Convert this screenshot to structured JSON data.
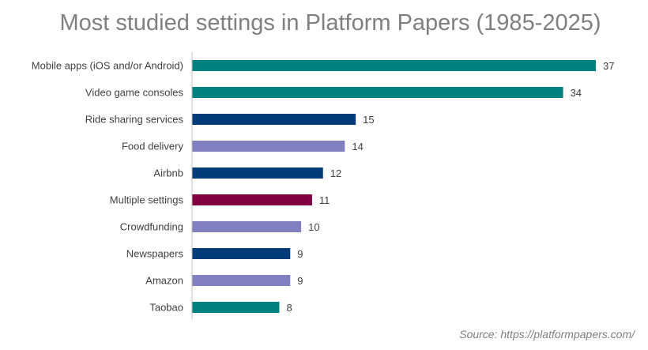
{
  "chart_data": {
    "type": "bar",
    "orientation": "horizontal",
    "title": "Most studied settings in Platform Papers (1985-2025)",
    "xlabel": "",
    "ylabel": "",
    "xlim": [
      0,
      38
    ],
    "grid": false,
    "legend": "none",
    "categories": [
      "Mobile apps (iOS and/or Android)",
      "Video game consoles",
      "Ride sharing services",
      "Food delivery",
      "Airbnb",
      "Multiple settings",
      "Crowdfunding",
      "Newspapers",
      "Amazon",
      "Taobao"
    ],
    "values": [
      37,
      34,
      15,
      14,
      12,
      11,
      10,
      9,
      9,
      8
    ],
    "bar_colors": [
      "#008080",
      "#008080",
      "#003b7a",
      "#8080c0",
      "#003b7a",
      "#800040",
      "#8080c0",
      "#003b7a",
      "#8080c0",
      "#008080"
    ],
    "source": "Source: https://platformpapers.com/"
  },
  "colors": {
    "title": "#7f7f7f",
    "axis": "#bfbfbf",
    "label": "#404040",
    "source": "#7f7f7f"
  }
}
